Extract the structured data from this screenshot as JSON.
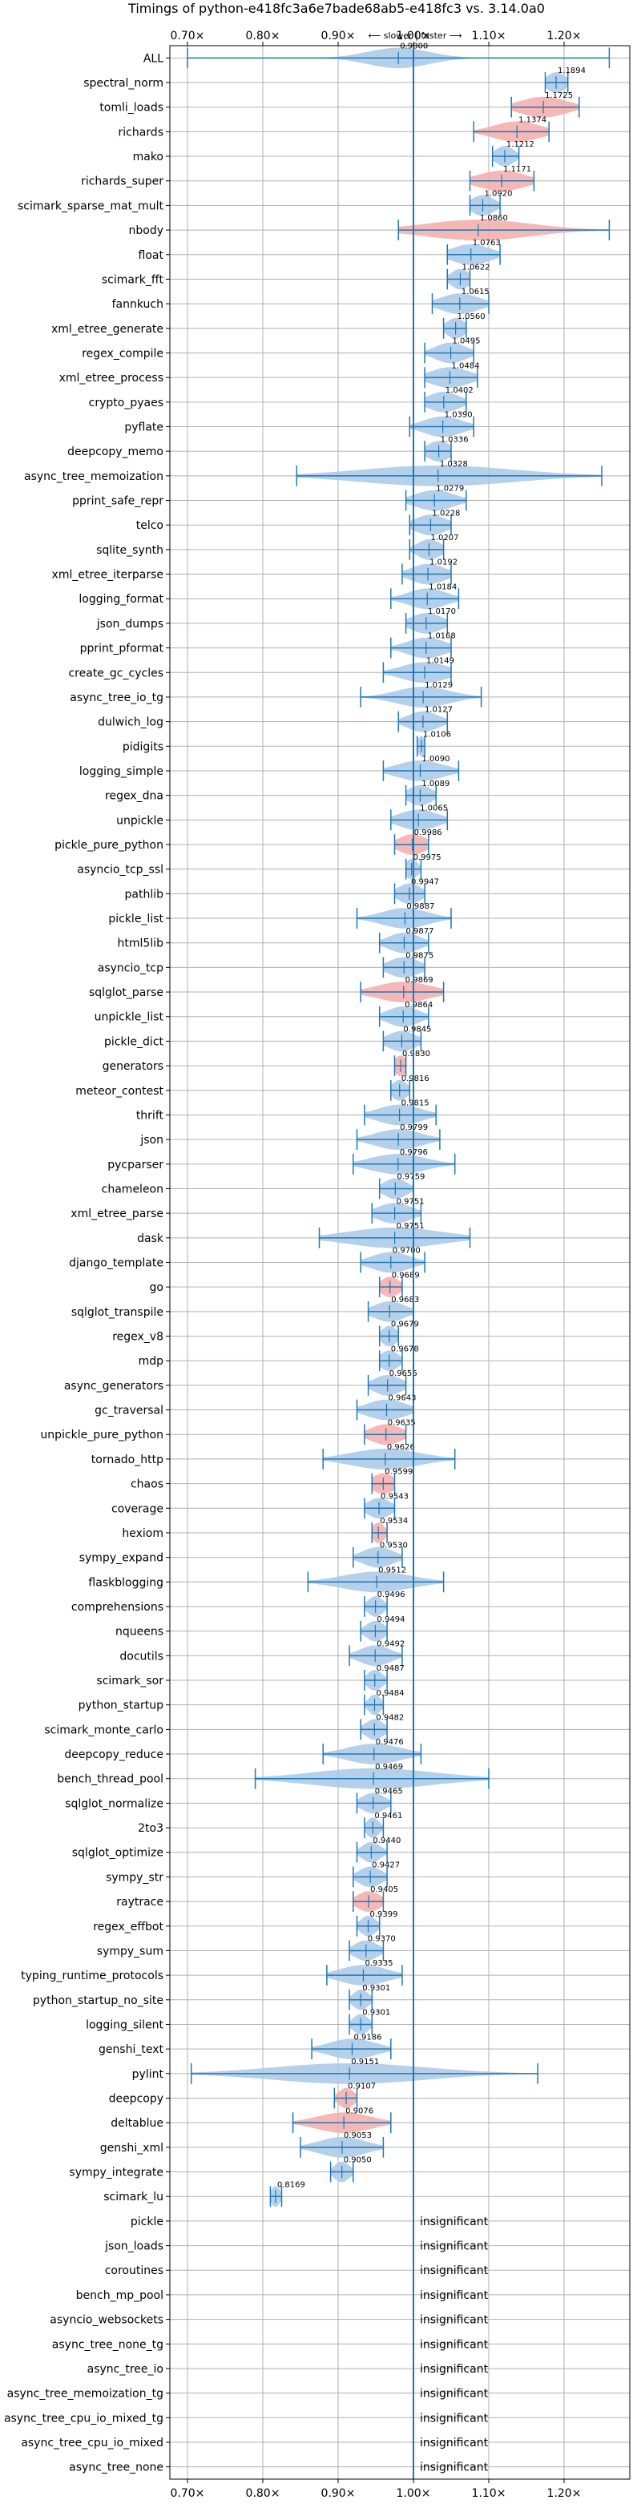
{
  "chart_data": {
    "type": "violin",
    "title": "Timings of python-e418fc3a6e7bade68ab5-e418fc3 vs. 3.14.0a0",
    "subtitle": "⟵ slower | faster ⟶",
    "xlim": [
      0.68,
      1.28
    ],
    "xticks": [
      "0.70×",
      "0.80×",
      "0.90×",
      "1.00×",
      "1.10×",
      "1.20×"
    ],
    "xtick_values": [
      0.7,
      0.8,
      0.9,
      1.0,
      1.1,
      1.2
    ],
    "reference_line": 1.0,
    "grid": true,
    "colors": {
      "faster": "#a8c8e8",
      "slower": "#f4aaaa",
      "line": "#1f77b4"
    },
    "benchmarks": [
      {
        "name": "ALL",
        "value": 0.98,
        "label": "0.9800",
        "lo": 0.7,
        "hi": 1.26,
        "spread": 0.04
      },
      {
        "name": "spectral_norm",
        "value": 1.1894,
        "label": "1.1894",
        "lo": 1.175,
        "hi": 1.205,
        "spread": 0.012
      },
      {
        "name": "tomli_loads",
        "value": 1.1725,
        "label": "1.1725",
        "lo": 1.13,
        "hi": 1.22,
        "spread": 0.03
      },
      {
        "name": "richards",
        "value": 1.1374,
        "label": "1.1374",
        "lo": 1.08,
        "hi": 1.18,
        "spread": 0.03
      },
      {
        "name": "mako",
        "value": 1.1212,
        "label": "1.1212",
        "lo": 1.105,
        "hi": 1.14,
        "spread": 0.012
      },
      {
        "name": "richards_super",
        "value": 1.1171,
        "label": "1.1171",
        "lo": 1.075,
        "hi": 1.16,
        "spread": 0.03
      },
      {
        "name": "scimark_sparse_mat_mult",
        "value": 1.092,
        "label": "1.0920",
        "lo": 1.075,
        "hi": 1.115,
        "spread": 0.015
      },
      {
        "name": "nbody",
        "value": 1.086,
        "label": "1.0860",
        "lo": 0.98,
        "hi": 1.26,
        "spread": 0.07
      },
      {
        "name": "float",
        "value": 1.0763,
        "label": "1.0763",
        "lo": 1.045,
        "hi": 1.115,
        "spread": 0.025
      },
      {
        "name": "scimark_fft",
        "value": 1.0622,
        "label": "1.0622",
        "lo": 1.045,
        "hi": 1.075,
        "spread": 0.012
      },
      {
        "name": "fannkuch",
        "value": 1.0615,
        "label": "1.0615",
        "lo": 1.025,
        "hi": 1.1,
        "spread": 0.025
      },
      {
        "name": "xml_etree_generate",
        "value": 1.056,
        "label": "1.0560",
        "lo": 1.04,
        "hi": 1.07,
        "spread": 0.012
      },
      {
        "name": "regex_compile",
        "value": 1.0495,
        "label": "1.0495",
        "lo": 1.015,
        "hi": 1.08,
        "spread": 0.02
      },
      {
        "name": "xml_etree_process",
        "value": 1.0484,
        "label": "1.0484",
        "lo": 1.015,
        "hi": 1.085,
        "spread": 0.025
      },
      {
        "name": "crypto_pyaes",
        "value": 1.0402,
        "label": "1.0402",
        "lo": 1.015,
        "hi": 1.07,
        "spread": 0.02
      },
      {
        "name": "pyflate",
        "value": 1.039,
        "label": "1.0390",
        "lo": 0.995,
        "hi": 1.08,
        "spread": 0.025
      },
      {
        "name": "deepcopy_memo",
        "value": 1.0336,
        "label": "1.0336",
        "lo": 1.015,
        "hi": 1.05,
        "spread": 0.015
      },
      {
        "name": "async_tree_memoization",
        "value": 1.0328,
        "label": "1.0328",
        "lo": 0.845,
        "hi": 1.25,
        "spread": 0.1
      },
      {
        "name": "pprint_safe_repr",
        "value": 1.0279,
        "label": "1.0279",
        "lo": 0.99,
        "hi": 1.07,
        "spread": 0.025
      },
      {
        "name": "telco",
        "value": 1.0228,
        "label": "1.0228",
        "lo": 0.995,
        "hi": 1.05,
        "spread": 0.02
      },
      {
        "name": "sqlite_synth",
        "value": 1.0207,
        "label": "1.0207",
        "lo": 0.995,
        "hi": 1.04,
        "spread": 0.015
      },
      {
        "name": "xml_etree_iterparse",
        "value": 1.0192,
        "label": "1.0192",
        "lo": 0.985,
        "hi": 1.05,
        "spread": 0.022
      },
      {
        "name": "logging_format",
        "value": 1.0184,
        "label": "1.0184",
        "lo": 0.97,
        "hi": 1.06,
        "spread": 0.025
      },
      {
        "name": "json_dumps",
        "value": 1.017,
        "label": "1.0170",
        "lo": 0.99,
        "hi": 1.045,
        "spread": 0.02
      },
      {
        "name": "pprint_pformat",
        "value": 1.0168,
        "label": "1.0168",
        "lo": 0.97,
        "hi": 1.05,
        "spread": 0.025
      },
      {
        "name": "create_gc_cycles",
        "value": 1.0149,
        "label": "1.0149",
        "lo": 0.96,
        "hi": 1.05,
        "spread": 0.03
      },
      {
        "name": "async_tree_io_tg",
        "value": 1.0129,
        "label": "1.0129",
        "lo": 0.93,
        "hi": 1.09,
        "spread": 0.035
      },
      {
        "name": "dulwich_log",
        "value": 1.0127,
        "label": "1.0127",
        "lo": 0.98,
        "hi": 1.045,
        "spread": 0.02
      },
      {
        "name": "pidigits",
        "value": 1.0106,
        "label": "1.0106",
        "lo": 1.005,
        "hi": 1.015,
        "spread": 0.005
      },
      {
        "name": "logging_simple",
        "value": 1.009,
        "label": "1.0090",
        "lo": 0.96,
        "hi": 1.06,
        "spread": 0.03
      },
      {
        "name": "regex_dna",
        "value": 1.0089,
        "label": "1.0089",
        "lo": 0.99,
        "hi": 1.03,
        "spread": 0.015
      },
      {
        "name": "unpickle",
        "value": 1.0065,
        "label": "1.0065",
        "lo": 0.97,
        "hi": 1.045,
        "spread": 0.025
      },
      {
        "name": "pickle_pure_python",
        "value": 0.9986,
        "label": "0.9986",
        "lo": 0.975,
        "hi": 1.02,
        "spread": 0.018
      },
      {
        "name": "asyncio_tcp_ssl",
        "value": 0.9975,
        "label": "0.9975",
        "lo": 0.99,
        "hi": 1.01,
        "spread": 0.008
      },
      {
        "name": "pathlib",
        "value": 0.9947,
        "label": "0.9947",
        "lo": 0.975,
        "hi": 1.015,
        "spread": 0.015
      },
      {
        "name": "pickle_list",
        "value": 0.9887,
        "label": "0.9887",
        "lo": 0.925,
        "hi": 1.05,
        "spread": 0.03
      },
      {
        "name": "html5lib",
        "value": 0.9877,
        "label": "0.9877",
        "lo": 0.955,
        "hi": 1.02,
        "spread": 0.02
      },
      {
        "name": "asyncio_tcp",
        "value": 0.9875,
        "label": "0.9875",
        "lo": 0.96,
        "hi": 1.015,
        "spread": 0.02
      },
      {
        "name": "sqlglot_parse",
        "value": 0.9869,
        "label": "0.9869",
        "lo": 0.93,
        "hi": 1.04,
        "spread": 0.035
      },
      {
        "name": "unpickle_list",
        "value": 0.9864,
        "label": "0.9864",
        "lo": 0.955,
        "hi": 1.02,
        "spread": 0.02
      },
      {
        "name": "pickle_dict",
        "value": 0.9845,
        "label": "0.9845",
        "lo": 0.96,
        "hi": 1.01,
        "spread": 0.018
      },
      {
        "name": "generators",
        "value": 0.983,
        "label": "0.9830",
        "lo": 0.975,
        "hi": 0.99,
        "spread": 0.008
      },
      {
        "name": "meteor_contest",
        "value": 0.9816,
        "label": "0.9816",
        "lo": 0.97,
        "hi": 0.995,
        "spread": 0.01
      },
      {
        "name": "thrift",
        "value": 0.9815,
        "label": "0.9815",
        "lo": 0.935,
        "hi": 1.03,
        "spread": 0.028
      },
      {
        "name": "json",
        "value": 0.9799,
        "label": "0.9799",
        "lo": 0.925,
        "hi": 1.035,
        "spread": 0.03
      },
      {
        "name": "pycparser",
        "value": 0.9796,
        "label": "0.9796",
        "lo": 0.92,
        "hi": 1.055,
        "spread": 0.035
      },
      {
        "name": "chameleon",
        "value": 0.9759,
        "label": "0.9759",
        "lo": 0.955,
        "hi": 1.0,
        "spread": 0.015
      },
      {
        "name": "xml_etree_parse",
        "value": 0.9751,
        "label": "0.9751",
        "lo": 0.945,
        "hi": 1.01,
        "spread": 0.022
      },
      {
        "name": "dask",
        "value": 0.9751,
        "label": "0.9751",
        "lo": 0.875,
        "hi": 1.075,
        "spread": 0.06
      },
      {
        "name": "django_template",
        "value": 0.97,
        "label": "0.9700",
        "lo": 0.93,
        "hi": 1.015,
        "spread": 0.025
      },
      {
        "name": "go",
        "value": 0.9689,
        "label": "0.9689",
        "lo": 0.955,
        "hi": 0.985,
        "spread": 0.012
      },
      {
        "name": "sqlglot_transpile",
        "value": 0.9683,
        "label": "0.9683",
        "lo": 0.94,
        "hi": 1.0,
        "spread": 0.02
      },
      {
        "name": "regex_v8",
        "value": 0.9679,
        "label": "0.9679",
        "lo": 0.955,
        "hi": 0.98,
        "spread": 0.01
      },
      {
        "name": "mdp",
        "value": 0.9678,
        "label": "0.9678",
        "lo": 0.955,
        "hi": 0.985,
        "spread": 0.012
      },
      {
        "name": "async_generators",
        "value": 0.9656,
        "label": "0.9656",
        "lo": 0.94,
        "hi": 0.99,
        "spread": 0.018
      },
      {
        "name": "gc_traversal",
        "value": 0.9643,
        "label": "0.9643",
        "lo": 0.925,
        "hi": 1.0,
        "spread": 0.025
      },
      {
        "name": "unpickle_pure_python",
        "value": 0.9635,
        "label": "0.9635",
        "lo": 0.935,
        "hi": 0.99,
        "spread": 0.02
      },
      {
        "name": "tornado_http",
        "value": 0.9626,
        "label": "0.9626",
        "lo": 0.88,
        "hi": 1.055,
        "spread": 0.045
      },
      {
        "name": "chaos",
        "value": 0.9599,
        "label": "0.9599",
        "lo": 0.945,
        "hi": 0.975,
        "spread": 0.015
      },
      {
        "name": "coverage",
        "value": 0.9543,
        "label": "0.9543",
        "lo": 0.935,
        "hi": 0.975,
        "spread": 0.015
      },
      {
        "name": "hexiom",
        "value": 0.9534,
        "label": "0.9534",
        "lo": 0.945,
        "hi": 0.965,
        "spread": 0.008
      },
      {
        "name": "sympy_expand",
        "value": 0.953,
        "label": "0.9530",
        "lo": 0.92,
        "hi": 0.985,
        "spread": 0.02
      },
      {
        "name": "flaskblogging",
        "value": 0.9512,
        "label": "0.9512",
        "lo": 0.86,
        "hi": 1.04,
        "spread": 0.045
      },
      {
        "name": "comprehensions",
        "value": 0.9496,
        "label": "0.9496",
        "lo": 0.935,
        "hi": 0.965,
        "spread": 0.01
      },
      {
        "name": "nqueens",
        "value": 0.9494,
        "label": "0.9494",
        "lo": 0.93,
        "hi": 0.965,
        "spread": 0.012
      },
      {
        "name": "docutils",
        "value": 0.9492,
        "label": "0.9492",
        "lo": 0.915,
        "hi": 0.985,
        "spread": 0.02
      },
      {
        "name": "scimark_sor",
        "value": 0.9487,
        "label": "0.9487",
        "lo": 0.935,
        "hi": 0.965,
        "spread": 0.01
      },
      {
        "name": "python_startup",
        "value": 0.9484,
        "label": "0.9484",
        "lo": 0.935,
        "hi": 0.96,
        "spread": 0.008
      },
      {
        "name": "scimark_monte_carlo",
        "value": 0.9482,
        "label": "0.9482",
        "lo": 0.93,
        "hi": 0.965,
        "spread": 0.012
      },
      {
        "name": "deepcopy_reduce",
        "value": 0.9476,
        "label": "0.9476",
        "lo": 0.88,
        "hi": 1.01,
        "spread": 0.035
      },
      {
        "name": "bench_thread_pool",
        "value": 0.9469,
        "label": "0.9469",
        "lo": 0.79,
        "hi": 1.1,
        "spread": 0.08
      },
      {
        "name": "sqlglot_normalize",
        "value": 0.9465,
        "label": "0.9465",
        "lo": 0.925,
        "hi": 0.97,
        "spread": 0.015
      },
      {
        "name": "2to3",
        "value": 0.9461,
        "label": "0.9461",
        "lo": 0.935,
        "hi": 0.96,
        "spread": 0.008
      },
      {
        "name": "sqlglot_optimize",
        "value": 0.944,
        "label": "0.9440",
        "lo": 0.925,
        "hi": 0.965,
        "spread": 0.012
      },
      {
        "name": "sympy_str",
        "value": 0.9427,
        "label": "0.9427",
        "lo": 0.92,
        "hi": 0.965,
        "spread": 0.015
      },
      {
        "name": "raytrace",
        "value": 0.9405,
        "label": "0.9405",
        "lo": 0.92,
        "hi": 0.96,
        "spread": 0.015
      },
      {
        "name": "regex_effbot",
        "value": 0.9399,
        "label": "0.9399",
        "lo": 0.925,
        "hi": 0.955,
        "spread": 0.01
      },
      {
        "name": "sympy_sum",
        "value": 0.937,
        "label": "0.9370",
        "lo": 0.915,
        "hi": 0.96,
        "spread": 0.015
      },
      {
        "name": "typing_runtime_protocols",
        "value": 0.9335,
        "label": "0.9335",
        "lo": 0.885,
        "hi": 0.985,
        "spread": 0.03
      },
      {
        "name": "python_startup_no_site",
        "value": 0.9301,
        "label": "0.9301",
        "lo": 0.915,
        "hi": 0.945,
        "spread": 0.01
      },
      {
        "name": "logging_silent",
        "value": 0.9301,
        "label": "0.9301",
        "lo": 0.915,
        "hi": 0.945,
        "spread": 0.01
      },
      {
        "name": "genshi_text",
        "value": 0.9186,
        "label": "0.9186",
        "lo": 0.865,
        "hi": 0.97,
        "spread": 0.03
      },
      {
        "name": "pylint",
        "value": 0.9151,
        "label": "0.9151",
        "lo": 0.705,
        "hi": 1.165,
        "spread": 0.1
      },
      {
        "name": "deepcopy",
        "value": 0.9107,
        "label": "0.9107",
        "lo": 0.895,
        "hi": 0.925,
        "spread": 0.01
      },
      {
        "name": "deltablue",
        "value": 0.9076,
        "label": "0.9076",
        "lo": 0.84,
        "hi": 0.97,
        "spread": 0.035
      },
      {
        "name": "genshi_xml",
        "value": 0.9053,
        "label": "0.9053",
        "lo": 0.85,
        "hi": 0.96,
        "spread": 0.03
      },
      {
        "name": "sympy_integrate",
        "value": 0.905,
        "label": "0.9050",
        "lo": 0.89,
        "hi": 0.92,
        "spread": 0.01
      },
      {
        "name": "scimark_lu",
        "value": 0.8169,
        "label": "0.8169",
        "lo": 0.81,
        "hi": 0.825,
        "spread": 0.006
      },
      {
        "name": "pickle",
        "insignificant": true
      },
      {
        "name": "json_loads",
        "insignificant": true
      },
      {
        "name": "coroutines",
        "insignificant": true
      },
      {
        "name": "bench_mp_pool",
        "insignificant": true
      },
      {
        "name": "asyncio_websockets",
        "insignificant": true
      },
      {
        "name": "async_tree_none_tg",
        "insignificant": true
      },
      {
        "name": "async_tree_io",
        "insignificant": true
      },
      {
        "name": "async_tree_memoization_tg",
        "insignificant": true
      },
      {
        "name": "async_tree_cpu_io_mixed_tg",
        "insignificant": true
      },
      {
        "name": "async_tree_cpu_io_mixed",
        "insignificant": true
      },
      {
        "name": "async_tree_none",
        "insignificant": true
      }
    ],
    "insignificant_label": "insignificant"
  }
}
